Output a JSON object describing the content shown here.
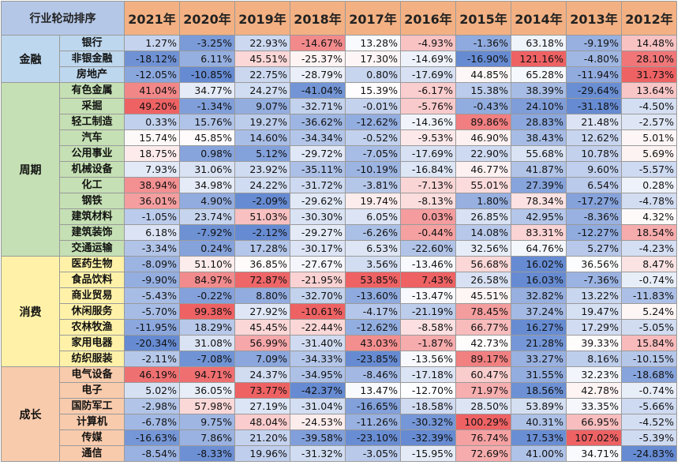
{
  "corner_label": "行业轮动排序",
  "years": [
    "2021年",
    "2020年",
    "2019年",
    "2018年",
    "2017年",
    "2016年",
    "2015年",
    "2014年",
    "2013年",
    "2012年"
  ],
  "groups": [
    {
      "name": "金融",
      "color": "#bdd7ee",
      "rows": [
        {
          "industry": "银行",
          "values": [
            "1.27%",
            "-3.25%",
            "22.93%",
            "-14.67%",
            "13.28%",
            "-4.93%",
            "-1.36%",
            "63.18%",
            "-9.19%",
            "14.48%"
          ]
        },
        {
          "industry": "非银金融",
          "values": [
            "-18.12%",
            "6.11%",
            "45.51%",
            "-25.37%",
            "17.30%",
            "-14.69%",
            "-16.90%",
            "121.16%",
            "-4.80%",
            "28.10%"
          ]
        },
        {
          "industry": "房地产",
          "values": [
            "-12.05%",
            "-10.85%",
            "22.75%",
            "-28.79%",
            "0.80%",
            "-17.69%",
            "44.85%",
            "65.28%",
            "-11.94%",
            "31.73%"
          ]
        }
      ]
    },
    {
      "name": "周期",
      "color": "#c5e0b4",
      "rows": [
        {
          "industry": "有色金属",
          "values": [
            "41.04%",
            "34.77%",
            "24.27%",
            "-41.04%",
            "15.39%",
            "-6.17%",
            "15.38%",
            "38.39%",
            "-29.64%",
            "13.64%"
          ]
        },
        {
          "industry": "采掘",
          "values": [
            "49.20%",
            "-1.34%",
            "9.07%",
            "-32.71%",
            "-0.01%",
            "-5.76%",
            "-0.43%",
            "24.10%",
            "-31.18%",
            "-4.50%"
          ]
        },
        {
          "industry": "轻工制造",
          "values": [
            "0.33%",
            "15.76%",
            "19.27%",
            "-36.62%",
            "-12.62%",
            "-14.36%",
            "89.86%",
            "28.83%",
            "21.48%",
            "-2.57%"
          ]
        },
        {
          "industry": "汽车",
          "values": [
            "15.74%",
            "45.85%",
            "14.60%",
            "-34.34%",
            "-0.52%",
            "-9.53%",
            "46.90%",
            "38.43%",
            "12.62%",
            "5.01%"
          ]
        },
        {
          "industry": "公用事业",
          "values": [
            "18.75%",
            "0.98%",
            "5.12%",
            "-29.72%",
            "-7.05%",
            "-17.69%",
            "22.90%",
            "55.68%",
            "10.78%",
            "5.69%"
          ]
        },
        {
          "industry": "机械设备",
          "values": [
            "7.93%",
            "31.06%",
            "23.92%",
            "-35.11%",
            "-10.19%",
            "-16.84%",
            "46.77%",
            "41.87%",
            "9.60%",
            "-5.57%"
          ]
        },
        {
          "industry": "化工",
          "values": [
            "38.94%",
            "34.98%",
            "24.22%",
            "-31.72%",
            "-3.81%",
            "-7.13%",
            "55.01%",
            "27.39%",
            "6.54%",
            "0.28%"
          ]
        },
        {
          "industry": "钢铁",
          "values": [
            "36.01%",
            "4.90%",
            "-2.09%",
            "-29.62%",
            "19.74%",
            "-8.13%",
            "1.80%",
            "78.34%",
            "-17.27%",
            "-4.78%"
          ]
        },
        {
          "industry": "建筑材料",
          "values": [
            "-1.05%",
            "23.74%",
            "51.03%",
            "-30.30%",
            "6.05%",
            "0.03%",
            "26.85%",
            "42.95%",
            "-8.36%",
            "4.32%"
          ]
        },
        {
          "industry": "建筑装饰",
          "values": [
            "6.18%",
            "-7.92%",
            "-2.12%",
            "-29.27%",
            "-6.26%",
            "-0.44%",
            "14.08%",
            "83.31%",
            "-12.27%",
            "18.54%"
          ]
        },
        {
          "industry": "交通运输",
          "values": [
            "-3.34%",
            "0.24%",
            "17.28%",
            "-30.17%",
            "6.53%",
            "-22.60%",
            "32.56%",
            "64.76%",
            "5.27%",
            "-4.23%"
          ]
        }
      ]
    },
    {
      "name": "消费",
      "color": "#fff2a8",
      "rows": [
        {
          "industry": "医药生物",
          "values": [
            "-8.09%",
            "51.10%",
            "36.85%",
            "-27.67%",
            "3.56%",
            "-13.46%",
            "56.68%",
            "16.02%",
            "36.56%",
            "8.47%"
          ]
        },
        {
          "industry": "食品饮料",
          "values": [
            "-9.90%",
            "84.97%",
            "72.87%",
            "-21.95%",
            "53.85%",
            "7.43%",
            "26.58%",
            "16.03%",
            "-7.36%",
            "-0.74%"
          ]
        },
        {
          "industry": "商业贸易",
          "values": [
            "-5.43%",
            "-0.22%",
            "8.80%",
            "-32.70%",
            "-13.60%",
            "-13.47%",
            "45.51%",
            "32.82%",
            "13.22%",
            "-11.83%"
          ]
        },
        {
          "industry": "休闲服务",
          "values": [
            "-5.70%",
            "99.38%",
            "27.92%",
            "-10.61%",
            "-4.17%",
            "-21.19%",
            "78.45%",
            "37.24%",
            "19.47%",
            "5.24%"
          ]
        },
        {
          "industry": "农林牧渔",
          "values": [
            "-11.95%",
            "18.29%",
            "45.45%",
            "-22.44%",
            "-12.62%",
            "-8.58%",
            "66.77%",
            "16.27%",
            "17.29%",
            "-5.05%"
          ]
        },
        {
          "industry": "家用电器",
          "values": [
            "-20.34%",
            "31.08%",
            "56.99%",
            "-31.40%",
            "43.03%",
            "-1.87%",
            "42.73%",
            "21.28%",
            "39.33%",
            "15.84%"
          ]
        },
        {
          "industry": "纺织服装",
          "values": [
            "-2.11%",
            "-7.08%",
            "7.09%",
            "-34.33%",
            "-23.85%",
            "-13.56%",
            "89.17%",
            "33.27%",
            "8.16%",
            "-10.15%"
          ]
        }
      ]
    },
    {
      "name": "成长",
      "color": "#f8cbad",
      "rows": [
        {
          "industry": "电气设备",
          "values": [
            "46.19%",
            "94.71%",
            "24.37%",
            "-34.95%",
            "-8.46%",
            "-17.18%",
            "60.47%",
            "31.55%",
            "32.23%",
            "-18.68%"
          ]
        },
        {
          "industry": "电子",
          "values": [
            "5.02%",
            "36.05%",
            "73.77%",
            "-42.37%",
            "13.47%",
            "-12.70%",
            "71.97%",
            "18.56%",
            "42.78%",
            "-0.74%"
          ]
        },
        {
          "industry": "国防军工",
          "values": [
            "-2.98%",
            "57.98%",
            "27.19%",
            "-31.04%",
            "-16.65%",
            "-18.58%",
            "28.50%",
            "53.89%",
            "33.35%",
            "-5.66%"
          ]
        },
        {
          "industry": "计算机",
          "values": [
            "-6.78%",
            "9.75%",
            "48.04%",
            "-24.53%",
            "-11.26%",
            "-30.32%",
            "100.29%",
            "40.31%",
            "66.95%",
            "-4.52%"
          ]
        },
        {
          "industry": "传媒",
          "values": [
            "-16.63%",
            "7.86%",
            "21.20%",
            "-39.58%",
            "-23.10%",
            "-32.39%",
            "76.74%",
            "17.53%",
            "107.02%",
            "-5.39%"
          ]
        },
        {
          "industry": "通信",
          "values": [
            "-8.54%",
            "-8.33%",
            "19.96%",
            "-31.32%",
            "-3.05%",
            "-15.95%",
            "72.69%",
            "41.00%",
            "34.71%",
            "-24.83%"
          ]
        }
      ]
    }
  ]
}
